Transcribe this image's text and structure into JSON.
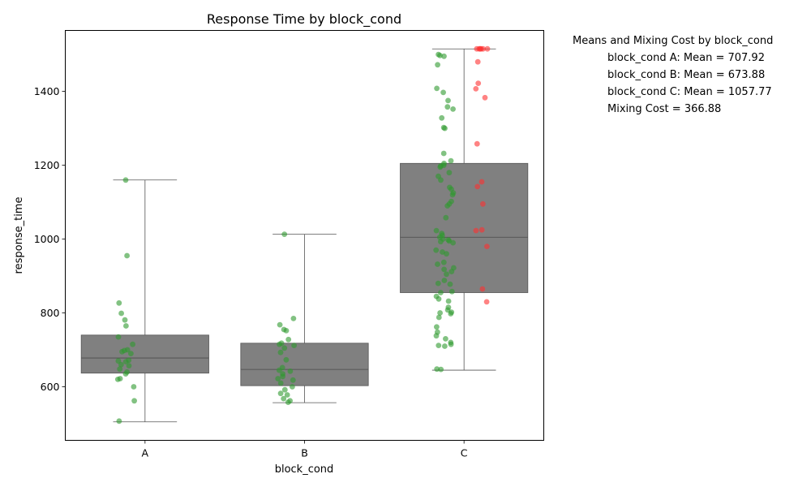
{
  "chart_data": {
    "type": "box",
    "title": "Response Time by block_cond",
    "xlabel": "block_cond",
    "ylabel": "response_time",
    "categories": [
      "A",
      "B",
      "C"
    ],
    "ylim": [
      455,
      1565
    ],
    "yticks": [
      600,
      800,
      1000,
      1200,
      1400
    ],
    "grid": false,
    "boxes": [
      {
        "category": "A",
        "whisker_low": 505,
        "q1": 637,
        "median": 678,
        "q3": 740,
        "whisker_high": 1160
      },
      {
        "category": "B",
        "whisker_low": 557,
        "q1": 603,
        "median": 647,
        "q3": 718,
        "whisker_high": 1013
      },
      {
        "category": "C",
        "whisker_low": 645,
        "q1": 855,
        "median": 1005,
        "q3": 1205,
        "whisker_high": 1515
      }
    ],
    "points": [
      {
        "category": "A",
        "color": "green",
        "values": [
          1160,
          955,
          827,
          799,
          781,
          765,
          735,
          715,
          700,
          698,
          695,
          690,
          672,
          670,
          668,
          660,
          657,
          648,
          640,
          635,
          622,
          620,
          600,
          562,
          507
        ]
      },
      {
        "category": "B",
        "color": "green",
        "values": [
          1013,
          785,
          768,
          755,
          752,
          728,
          718,
          715,
          712,
          705,
          693,
          673,
          652,
          645,
          642,
          635,
          628,
          622,
          618,
          610,
          600,
          592,
          582,
          578,
          568,
          562,
          558
        ]
      },
      {
        "category": "C",
        "color": "green",
        "values": [
          1500,
          1497,
          1495,
          1472,
          1408,
          1397,
          1375,
          1358,
          1352,
          1328,
          1302,
          1300,
          1232,
          1212,
          1205,
          1200,
          1198,
          1195,
          1180,
          1170,
          1160,
          1140,
          1135,
          1125,
          1120,
          1102,
          1095,
          1090,
          1058,
          1023,
          1015,
          1010,
          1005,
          1000,
          998,
          995,
          993,
          990,
          970,
          965,
          960,
          937,
          932,
          922,
          918,
          912,
          905,
          888,
          880,
          878,
          858,
          855,
          845,
          838,
          832,
          815,
          808,
          802,
          800,
          798,
          788,
          762,
          748,
          738,
          730,
          720,
          715,
          712,
          710,
          648,
          647
        ]
      },
      {
        "category": "C",
        "color": "red",
        "values": [
          1515,
          1515,
          1515,
          1515,
          1515,
          1515,
          1480,
          1422,
          1407,
          1383,
          1258,
          1155,
          1142,
          1095,
          1025,
          1023,
          980,
          865,
          830
        ]
      }
    ]
  },
  "annotation": {
    "header": "Means and Mixing Cost by block_cond",
    "lines": [
      "block_cond A: Mean = 707.92",
      "block_cond B: Mean = 673.88",
      "block_cond C: Mean = 1057.77",
      "Mixing Cost = 366.88"
    ]
  },
  "colors": {
    "box_fill": "#808080",
    "box_edge": "#555555",
    "green_point": "#2e9a2e",
    "red_point": "#ff3030"
  }
}
